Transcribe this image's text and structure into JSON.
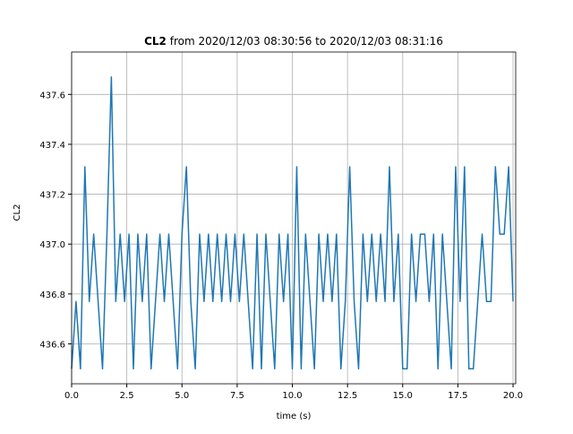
{
  "chart_data": {
    "type": "line",
    "title_parts": [
      "CL2",
      "from 2020/12/03 08:30:56 to 2020/12/03 08:31:16"
    ],
    "x_label": "time (s)",
    "y_label": "CL2",
    "x": [
      0.0,
      0.2,
      0.4,
      0.6,
      0.8,
      1.0,
      1.2,
      1.4,
      1.6,
      1.8,
      2.0,
      2.2,
      2.4,
      2.6,
      2.8,
      3.0,
      3.2,
      3.4,
      3.6,
      3.8,
      4.0,
      4.2,
      4.4,
      4.6,
      4.8,
      5.0,
      5.2,
      5.4,
      5.6,
      5.8,
      6.0,
      6.2,
      6.4,
      6.6,
      6.8,
      7.0,
      7.2,
      7.4,
      7.6,
      7.8,
      8.0,
      8.2,
      8.4,
      8.6,
      8.8,
      9.0,
      9.2,
      9.4,
      9.6,
      9.8,
      10.0,
      10.2,
      10.4,
      10.6,
      10.8,
      11.0,
      11.2,
      11.4,
      11.6,
      11.8,
      12.0,
      12.2,
      12.4,
      12.6,
      12.8,
      13.0,
      13.2,
      13.4,
      13.6,
      13.8,
      14.0,
      14.2,
      14.4,
      14.6,
      14.8,
      15.0,
      15.2,
      15.4,
      15.6,
      15.8,
      16.0,
      16.2,
      16.4,
      16.6,
      16.8,
      17.0,
      17.2,
      17.4,
      17.6,
      17.8,
      18.0,
      18.2,
      18.4,
      18.6,
      18.8,
      19.0,
      19.2,
      19.4,
      19.6,
      19.8,
      20.0
    ],
    "series": [
      {
        "color": "#1f77b4",
        "values": [
          436.5,
          436.77,
          436.5,
          437.31,
          436.77,
          437.04,
          436.77,
          436.5,
          437.04,
          437.67,
          436.77,
          437.04,
          436.77,
          437.04,
          436.5,
          437.04,
          436.77,
          437.04,
          436.5,
          436.77,
          437.04,
          436.77,
          437.04,
          436.77,
          436.5,
          437.04,
          437.31,
          436.77,
          436.5,
          437.04,
          436.77,
          437.04,
          436.77,
          437.04,
          436.77,
          437.04,
          436.77,
          437.04,
          436.77,
          437.04,
          436.77,
          436.5,
          437.04,
          436.5,
          437.04,
          436.77,
          436.5,
          437.04,
          436.77,
          437.04,
          436.5,
          437.31,
          436.5,
          437.04,
          436.77,
          436.5,
          437.04,
          436.77,
          437.04,
          436.77,
          437.04,
          436.5,
          436.77,
          437.31,
          436.77,
          436.5,
          437.04,
          436.77,
          437.04,
          436.77,
          437.04,
          436.77,
          437.31,
          436.77,
          437.04,
          436.5,
          436.5,
          437.04,
          436.77,
          437.04,
          437.04,
          436.77,
          437.04,
          436.5,
          437.04,
          436.77,
          436.5,
          437.31,
          436.77,
          437.31,
          436.5,
          436.5,
          436.77,
          437.04,
          436.77,
          436.77,
          437.31,
          437.04,
          437.04,
          437.31,
          436.77
        ]
      }
    ],
    "xlim": [
      0,
      20.12
    ],
    "ylim": [
      436.44,
      437.77
    ],
    "xticks": [
      {
        "value": 0,
        "label": "0.0"
      },
      2.5,
      {
        "value": 5,
        "label": "5.0"
      },
      7.5,
      {
        "value": 10,
        "label": "10.0"
      },
      12.5,
      {
        "value": 15,
        "label": "15.0"
      },
      17.5,
      {
        "value": 20,
        "label": "20.0"
      }
    ],
    "yticks": [
      436.6,
      436.8,
      {
        "value": 437,
        "label": "437.0"
      },
      437.2,
      437.4,
      437.6
    ],
    "grid": true
  }
}
